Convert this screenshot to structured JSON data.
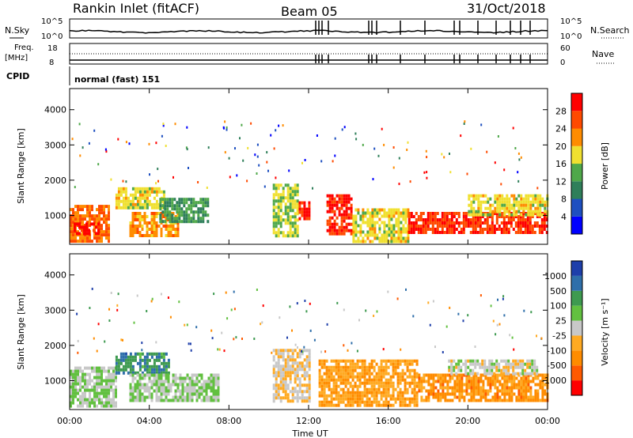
{
  "header": {
    "station": "Rankin Inlet (fitACF)",
    "beam": "Beam 05",
    "date": "31/Oct/2018"
  },
  "strip": {
    "nsky_label": "N.Sky",
    "nsky_ticks": [
      "10^5",
      "10^0"
    ],
    "nsearch_label": "N.Search",
    "nsearch_ticks": [
      "10^5",
      "10^0"
    ],
    "freq_label": "Freq.",
    "freq_unit": "[MHz]",
    "freq_ticks": [
      "18",
      "8"
    ],
    "nave_label": "Nave",
    "nave_ticks": [
      "60",
      "0"
    ],
    "cpid_label": "CPID",
    "cpid_value": "normal (fast) 151"
  },
  "colors": {
    "power": [
      "#0000ff",
      "#1e4fc0",
      "#2f7f5a",
      "#4fa84a",
      "#f0e030",
      "#ff8c00",
      "#ff4a00",
      "#ff0000"
    ],
    "velocity": [
      "#ff0000",
      "#ff5a00",
      "#ff8c00",
      "#ffaa22",
      "#c8c8c8",
      "#62c040",
      "#3e9a50",
      "#2f6faa",
      "#1e3faa"
    ]
  },
  "chart_data": [
    {
      "type": "heatmap",
      "name": "power",
      "ylabel": "Slant Range [km]",
      "xlabel": "Time UT",
      "x_ticks": [
        "00:00",
        "04:00",
        "08:00",
        "12:00",
        "16:00",
        "20:00",
        "00:00"
      ],
      "y_ticks": [
        "1000",
        "2000",
        "3000",
        "4000"
      ],
      "xlim": [
        0,
        24
      ],
      "ylim": [
        180,
        4600
      ],
      "colorbar": {
        "label": "Power [dB]",
        "ticks": [
          "4",
          "8",
          "12",
          "16",
          "20",
          "24",
          "28"
        ],
        "range": [
          0,
          32
        ]
      },
      "regions": [
        {
          "t0": 0.0,
          "t1": 2.0,
          "r0": 300,
          "r1": 1300,
          "level": 24
        },
        {
          "t0": 0.2,
          "t1": 1.5,
          "r0": 500,
          "r1": 800,
          "level": 30
        },
        {
          "t0": 2.3,
          "t1": 4.8,
          "r0": 1200,
          "r1": 1800,
          "level": 18
        },
        {
          "t0": 3.0,
          "t1": 5.5,
          "r0": 400,
          "r1": 1100,
          "level": 22
        },
        {
          "t0": 4.5,
          "t1": 7.0,
          "r0": 800,
          "r1": 1500,
          "level": 12
        },
        {
          "t0": 10.2,
          "t1": 11.5,
          "r0": 400,
          "r1": 1900,
          "level": 16
        },
        {
          "t0": 11.5,
          "t1": 12.0,
          "r0": 900,
          "r1": 1400,
          "level": 28
        },
        {
          "t0": 12.9,
          "t1": 14.2,
          "r0": 500,
          "r1": 1600,
          "level": 28
        },
        {
          "t0": 14.2,
          "t1": 17.0,
          "r0": 300,
          "r1": 1200,
          "level": 18
        },
        {
          "t0": 17.0,
          "t1": 24.0,
          "r0": 500,
          "r1": 1100,
          "level": 28
        },
        {
          "t0": 20.0,
          "t1": 24.0,
          "r0": 1000,
          "r1": 1600,
          "level": 18
        }
      ]
    },
    {
      "type": "heatmap",
      "name": "velocity",
      "ylabel": "Slant Range [km]",
      "xlabel": "Time UT",
      "x_ticks": [
        "00:00",
        "04:00",
        "08:00",
        "12:00",
        "16:00",
        "20:00",
        "00:00"
      ],
      "y_ticks": [
        "1000",
        "2000",
        "3000",
        "4000"
      ],
      "xlim": [
        0,
        24
      ],
      "ylim": [
        180,
        4600
      ],
      "colorbar": {
        "label": "Velocity [m s⁻¹]",
        "ticks": [
          "1000",
          "500",
          "100",
          "25",
          "-25",
          "-100",
          "-500",
          "-1000"
        ],
        "range": [
          -1000,
          1000
        ]
      },
      "regions": [
        {
          "t0": 0.0,
          "t1": 2.3,
          "r0": 300,
          "r1": 1400,
          "level": 100
        },
        {
          "t0": 2.3,
          "t1": 5.0,
          "r0": 1200,
          "r1": 1800,
          "level": 500
        },
        {
          "t0": 3.0,
          "t1": 7.5,
          "r0": 400,
          "r1": 1200,
          "level": 100
        },
        {
          "t0": 10.2,
          "t1": 12.0,
          "r0": 400,
          "r1": 1900,
          "level": -100
        },
        {
          "t0": 12.5,
          "t1": 17.5,
          "r0": 300,
          "r1": 1600,
          "level": -300
        },
        {
          "t0": 17.5,
          "t1": 24.0,
          "r0": 400,
          "r1": 1200,
          "level": -400
        },
        {
          "t0": 19.0,
          "t1": 23.5,
          "r0": 1200,
          "r1": 1600,
          "level": 0
        }
      ]
    }
  ]
}
